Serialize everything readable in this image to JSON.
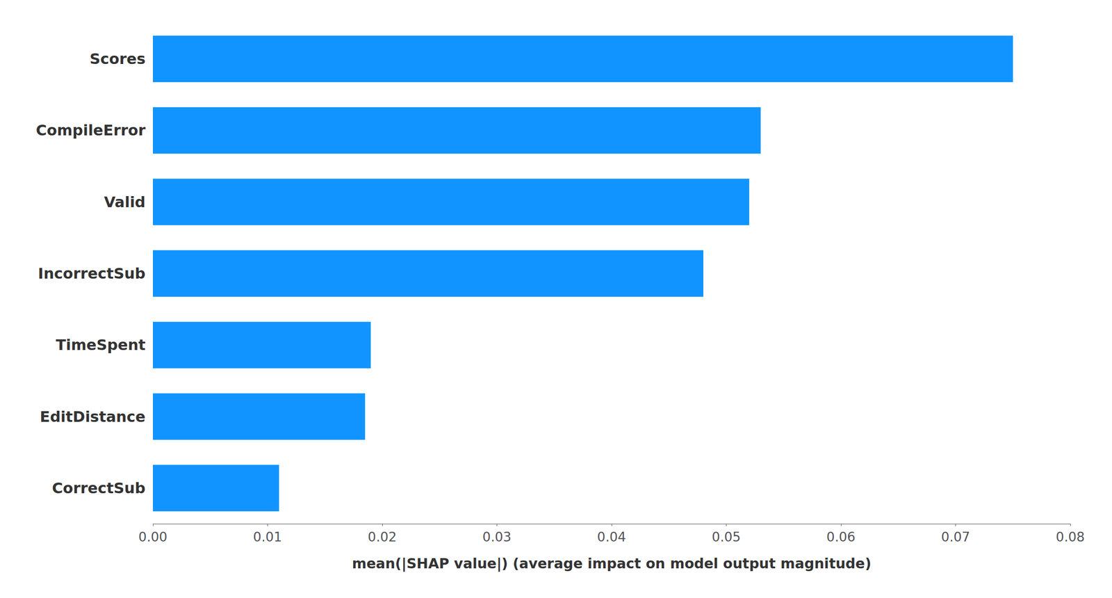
{
  "chart_data": {
    "type": "bar",
    "orientation": "horizontal",
    "categories": [
      "CorrectSub",
      "EditDistance",
      "TimeSpent",
      "IncorrectSub",
      "Valid",
      "CompileError",
      "Scores"
    ],
    "values": [
      0.011,
      0.0185,
      0.019,
      0.048,
      0.052,
      0.053,
      0.075
    ],
    "color": "#1194ff",
    "xlabel": "mean(|SHAP value|) (average impact on model output magnitude)",
    "xlim": [
      0,
      0.08
    ],
    "xticks": [
      {
        "value": 0,
        "label": "0.00"
      },
      0.01,
      0.02,
      0.03,
      0.04,
      0.05,
      0.06,
      0.07,
      0.08
    ],
    "grid": false
  }
}
